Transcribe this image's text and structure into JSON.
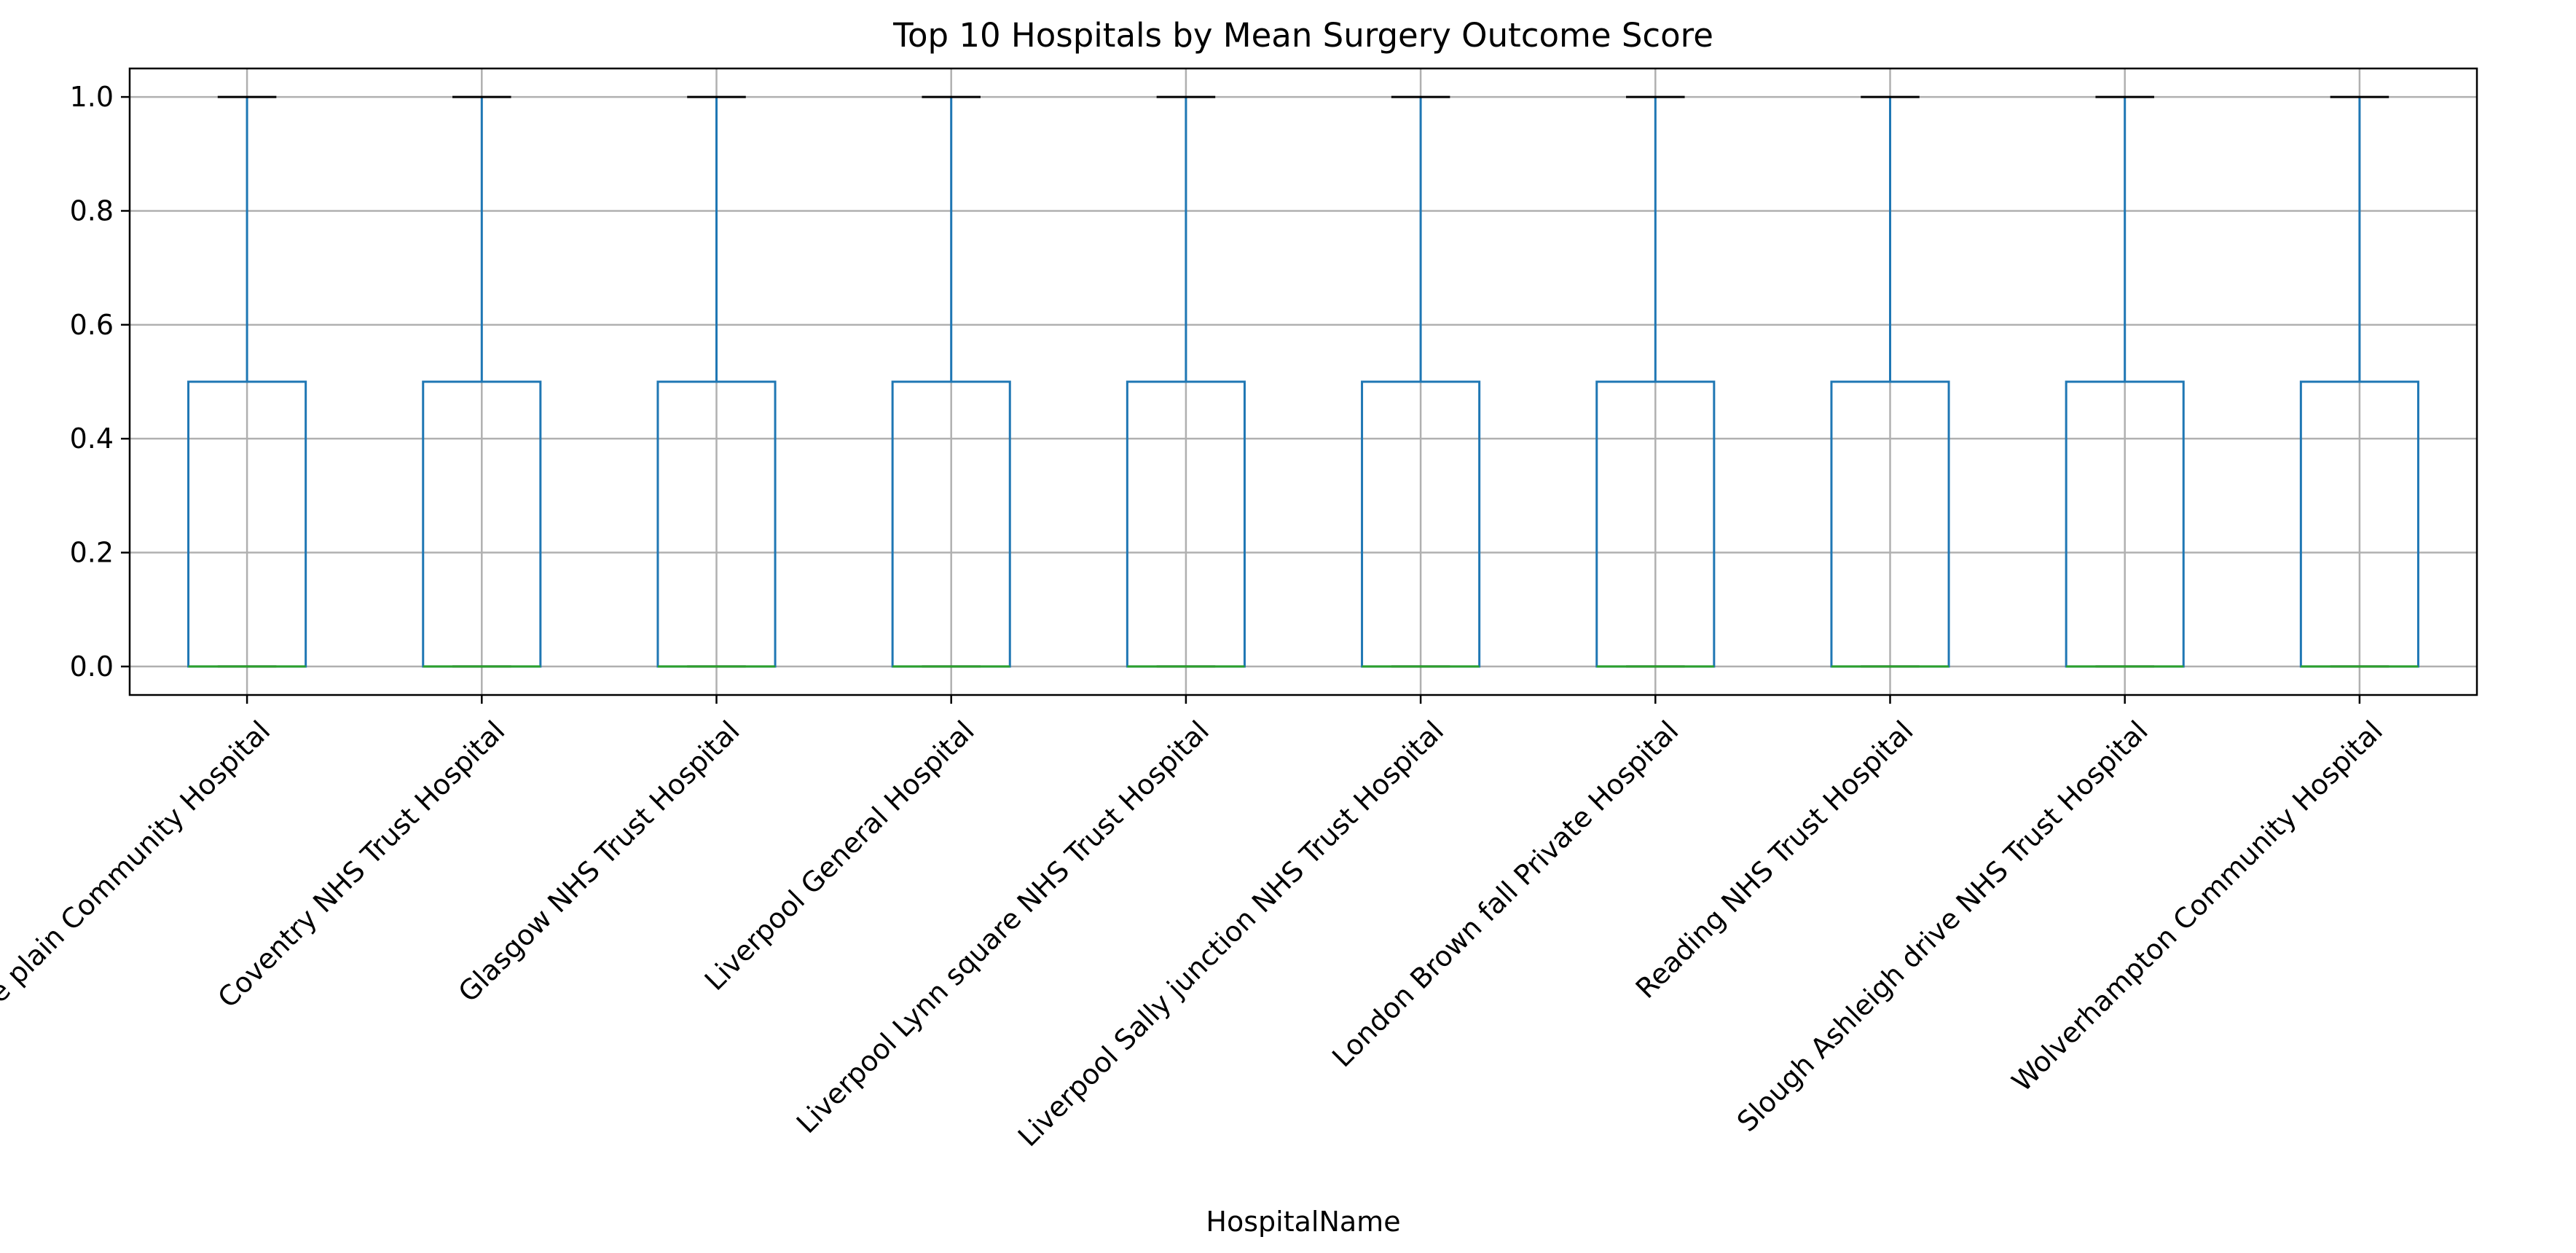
{
  "chart_data": {
    "type": "box",
    "title": "Top 10 Hospitals by Mean Surgery Outcome Score",
    "xlabel": "HospitalName",
    "ylabel": "",
    "ylim": [
      -0.05,
      1.05
    ],
    "yticks": [
      "0.0",
      "0.2",
      "0.4",
      "0.6",
      "0.8",
      "1.0"
    ],
    "grid": true,
    "categories": [
      "Bristol Reece plain Community Hospital",
      "Coventry NHS Trust Hospital",
      "Glasgow NHS Trust Hospital",
      "Liverpool General Hospital",
      "Liverpool Lynn square NHS Trust Hospital",
      "Liverpool Sally junction NHS Trust Hospital",
      "London Brown fall Private Hospital",
      "Reading NHS Trust Hospital",
      "Slough Ashleigh drive NHS Trust Hospital",
      "Wolverhampton Community Hospital"
    ],
    "boxes": [
      {
        "whisker_low": 0,
        "q1": 0,
        "median": 0,
        "q3": 0.5,
        "whisker_high": 1
      },
      {
        "whisker_low": 0,
        "q1": 0,
        "median": 0,
        "q3": 0.5,
        "whisker_high": 1
      },
      {
        "whisker_low": 0,
        "q1": 0,
        "median": 0,
        "q3": 0.5,
        "whisker_high": 1
      },
      {
        "whisker_low": 0,
        "q1": 0,
        "median": 0,
        "q3": 0.5,
        "whisker_high": 1
      },
      {
        "whisker_low": 0,
        "q1": 0,
        "median": 0,
        "q3": 0.5,
        "whisker_high": 1
      },
      {
        "whisker_low": 0,
        "q1": 0,
        "median": 0,
        "q3": 0.5,
        "whisker_high": 1
      },
      {
        "whisker_low": 0,
        "q1": 0,
        "median": 0,
        "q3": 0.5,
        "whisker_high": 1
      },
      {
        "whisker_low": 0,
        "q1": 0,
        "median": 0,
        "q3": 0.5,
        "whisker_high": 1
      },
      {
        "whisker_low": 0,
        "q1": 0,
        "median": 0,
        "q3": 0.5,
        "whisker_high": 1
      },
      {
        "whisker_low": 0,
        "q1": 0,
        "median": 0,
        "q3": 0.5,
        "whisker_high": 1
      }
    ],
    "colors": {
      "box": "#1f77b4",
      "median": "#2ca02c",
      "cap": "#000000",
      "grid": "#b0b0b0"
    }
  }
}
